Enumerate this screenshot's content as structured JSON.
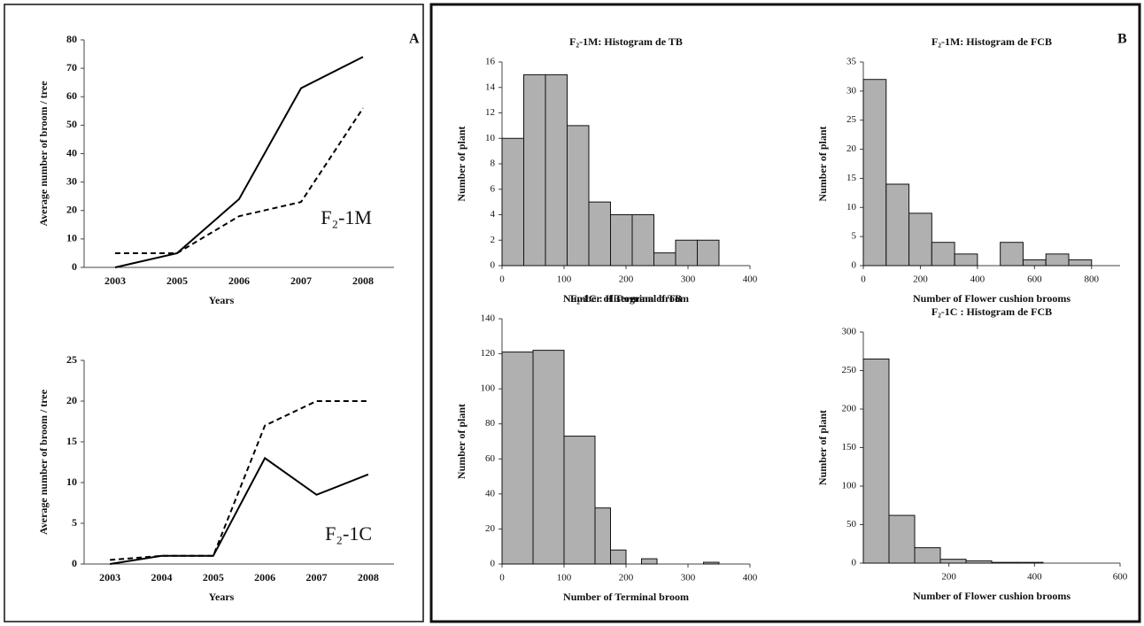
{
  "panel_labels": [
    "A",
    "B"
  ],
  "chart_data": [
    {
      "type": "line",
      "xlabel": "Years",
      "ylabel": "Average number of broom / tree",
      "annotation": "F₂-1M",
      "categories": [
        "2003",
        "2005",
        "2006",
        "2007",
        "2008"
      ],
      "series": [
        {
          "color": "#000000",
          "dashed": false,
          "values": [
            0,
            5,
            24,
            63,
            74
          ]
        },
        {
          "color": "#000000",
          "dashed": true,
          "values": [
            5,
            5,
            18,
            23,
            56
          ]
        }
      ],
      "ylim": [
        0,
        80
      ],
      "yticks": [
        0,
        10,
        20,
        30,
        40,
        50,
        60,
        70,
        80
      ]
    },
    {
      "type": "line",
      "xlabel": "Years",
      "ylabel": "Average number of broom / tree",
      "annotation": "F₂-1C",
      "categories": [
        "2003",
        "2004",
        "2005",
        "2006",
        "2007",
        "2008"
      ],
      "series": [
        {
          "color": "#000000",
          "dashed": false,
          "values": [
            0,
            1,
            1,
            13,
            8.5,
            11
          ]
        },
        {
          "color": "#000000",
          "dashed": true,
          "values": [
            0.5,
            1,
            1,
            17,
            20,
            20
          ]
        }
      ],
      "ylim": [
        0,
        25
      ],
      "yticks": [
        0,
        5,
        10,
        15,
        20,
        25
      ]
    },
    {
      "type": "histogram",
      "title": "F₂-1M:  Histogram de TB",
      "xlabel": "Number of Terminal broom",
      "ylabel": "Number of plant",
      "color": "#b0b0b0",
      "bins": [
        0,
        35,
        70,
        105,
        140,
        175,
        210,
        245,
        280,
        315,
        350
      ],
      "values": [
        10,
        15,
        15,
        11,
        5,
        4,
        4,
        1,
        2,
        2
      ],
      "xlim": [
        0,
        400
      ],
      "xticks": [
        0,
        100,
        200,
        300,
        400
      ],
      "ylim": [
        0,
        16
      ],
      "yticks": [
        0,
        2,
        4,
        6,
        8,
        10,
        12,
        14,
        16
      ]
    },
    {
      "type": "histogram",
      "title": "F₂-1M:  Histogram de FCB",
      "xlabel": "Number of Flower cushion brooms",
      "ylabel": "Number of plant",
      "color": "#b0b0b0",
      "bins": [
        0,
        80,
        160,
        240,
        320,
        400,
        480,
        560,
        640,
        720,
        800
      ],
      "values": [
        32,
        14,
        9,
        4,
        2,
        0,
        4,
        1,
        2,
        1
      ],
      "xlim": [
        0,
        900
      ],
      "xticks": [
        0,
        200,
        400,
        600,
        800
      ],
      "ylim": [
        0,
        35
      ],
      "yticks": [
        0,
        5,
        10,
        15,
        20,
        25,
        30,
        35
      ]
    },
    {
      "type": "histogram",
      "title": "F₂-1C :  Histogram  of TB",
      "xlabel": "Number of Terminal broom",
      "ylabel": "Number of plant",
      "color": "#b0b0b0",
      "bins": [
        0,
        50,
        100,
        150,
        175,
        200,
        225,
        250,
        275,
        300,
        325,
        350
      ],
      "values": [
        121,
        122,
        73,
        32,
        8,
        0,
        3,
        0,
        0,
        0,
        1
      ],
      "xlim": [
        0,
        400
      ],
      "xticks": [
        0,
        100,
        200,
        300,
        400
      ],
      "ylim": [
        0,
        140
      ],
      "yticks": [
        0,
        20,
        40,
        60,
        80,
        100,
        120,
        140
      ]
    },
    {
      "type": "histogram",
      "title": "F₂-1C :  Histogram de FCB",
      "xlabel": "Number of Flower cushion brooms",
      "ylabel": "Number of plant",
      "color": "#b0b0b0",
      "bins": [
        0,
        60,
        120,
        180,
        240,
        300,
        360,
        420,
        480,
        540,
        600
      ],
      "values": [
        265,
        62,
        20,
        5,
        3,
        1,
        1,
        0,
        0,
        0
      ],
      "xlim": [
        0,
        600
      ],
      "xticks": [
        200,
        400,
        600
      ],
      "ylim": [
        0,
        300
      ],
      "yticks": [
        0,
        50,
        100,
        150,
        200,
        250,
        300
      ]
    }
  ]
}
